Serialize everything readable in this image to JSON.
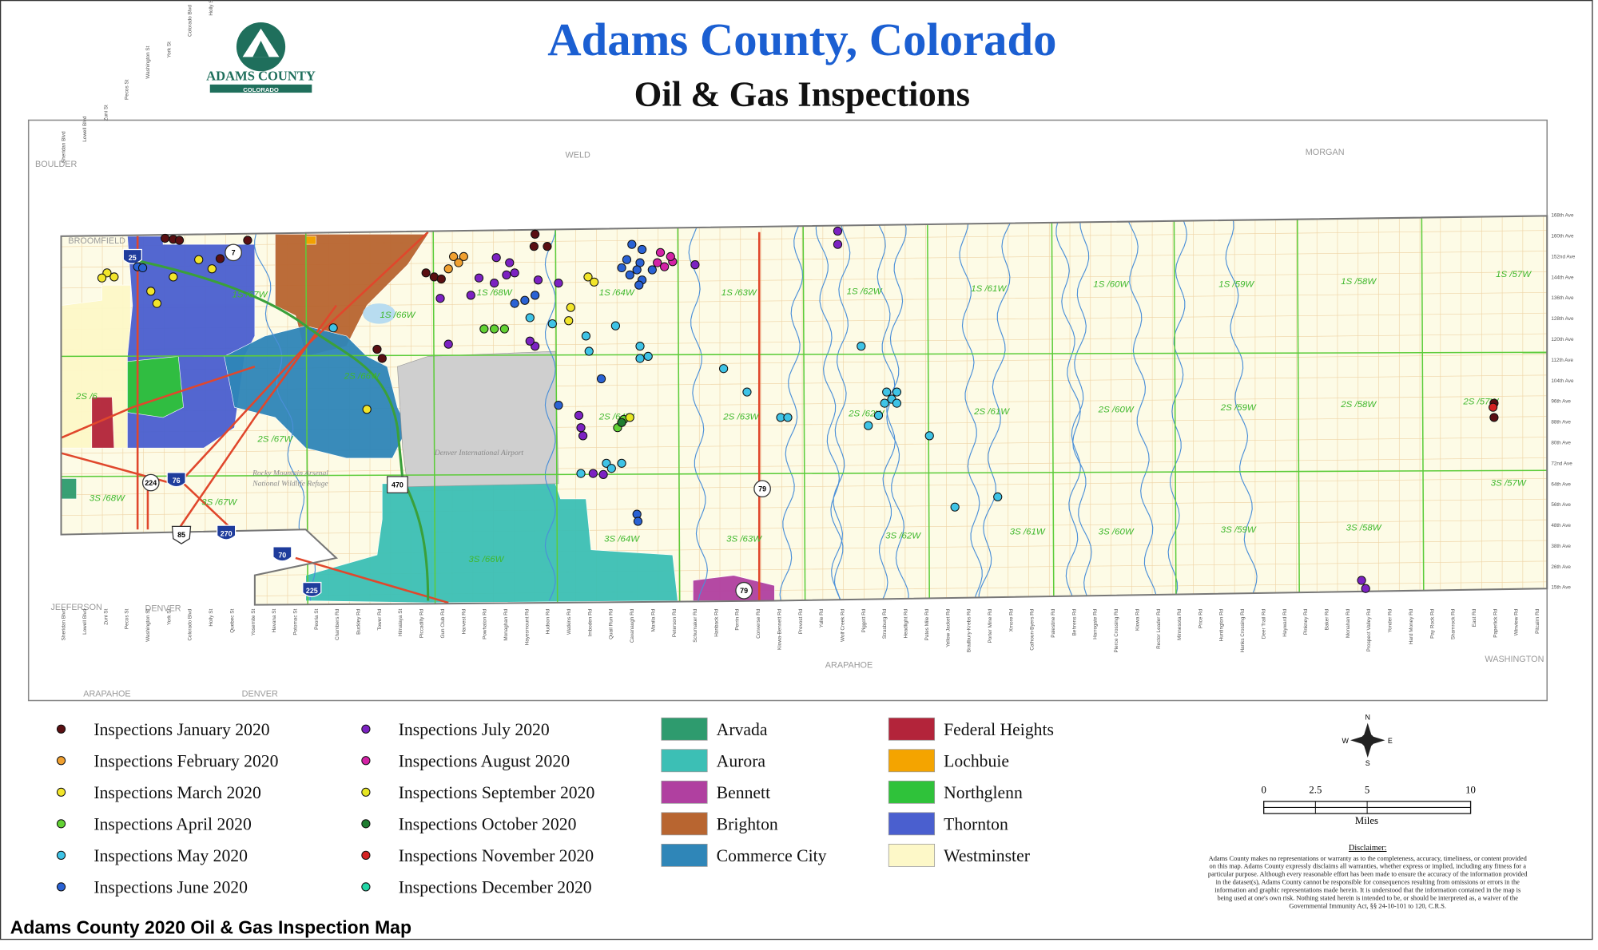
{
  "header": {
    "title": "Adams County, Colorado",
    "subtitle": "Oil & Gas Inspections",
    "logo_text": "ADAMS COUNTY",
    "logo_subtext": "COLORADO"
  },
  "map": {
    "neighbor_labels": [
      "BOULDER",
      "WELD",
      "MORGAN",
      "BROOMFIELD",
      "JEFFERSON",
      "DENVER",
      "ARAPAHOE",
      "WASHINGTON",
      "ARAPAHOE",
      "DENVER"
    ],
    "places": [
      "Denver International Airport",
      "Rocky Mountain Arsenal",
      "National Wildlife Refuge"
    ],
    "townships": [
      "1S /67W",
      "1S /66W",
      "1S /68W",
      "1S /64W",
      "1S /63W",
      "1S /62W",
      "1S /61W",
      "1S /60W",
      "1S /59W",
      "1S /58W",
      "1S /57W",
      "2S /6",
      "2S /66W",
      "2S /67W",
      "2S /64W",
      "2S /63W",
      "2S /62W",
      "2S /61W",
      "2S /60W",
      "2S /59W",
      "2S /58W",
      "2S /57W",
      "3S /68W",
      "3S /67W",
      "3S /66W",
      "3S /64W",
      "3S /63W",
      "3S /62W",
      "3S /61W",
      "3S /60W",
      "3S /59W",
      "3S /58W",
      "3S /57W"
    ],
    "avenues": [
      "168th Ave",
      "160th Ave",
      "152nd Ave",
      "144th Ave",
      "136th Ave",
      "128th Ave",
      "120th Ave",
      "112th Ave",
      "104th Ave",
      "96th Ave",
      "88th Ave",
      "80th Ave",
      "72nd Ave",
      "64th Ave",
      "56th Ave",
      "48th Ave",
      "38th Ave",
      "26th Ave",
      "15th Ave"
    ],
    "roads": [
      "Sheridan Blvd",
      "Lowell Blvd",
      "Zuni St",
      "Pecos St",
      "Washington St",
      "York St",
      "Colorado Blvd",
      "Holly St",
      "Quebec St",
      "Yosemite St",
      "Havana St",
      "Potomac St",
      "Peoria St",
      "Chambers Rd",
      "Buckley Rd",
      "Tower Rd",
      "Himalaya St",
      "Piccadilly Rd",
      "Gun Club Rd",
      "Harvest Rd",
      "Powhaton Rd",
      "Monaghan Rd",
      "Hayesmount Rd",
      "Hudson Rd",
      "Watkins Rd",
      "Imboden Rd",
      "Quail Run Rd",
      "Cavanaugh Rd",
      "Manila Rd",
      "Peterson Rd",
      "Schumaker Rd",
      "Hanback Rd",
      "Perrin Rd",
      "Converse Rd",
      "Kiowa-Bennett Rd",
      "Prevost Rd",
      "Yulle Rd",
      "Wolf Creek Rd",
      "Piggott Rd",
      "Strasburg Rd",
      "Headlight Rd",
      "Pates Mile Rd",
      "Yellow Jacket Rd",
      "Bradbury-Krebs Rd",
      "Porter Mine Rd",
      "Xmore Rd",
      "Calhoun-Byers Rd",
      "Palestine Rd",
      "Behrens Rd",
      "Harrogate Rd",
      "Pierce Crossing Rd",
      "Kiowa Rd",
      "Rector Leader Rd",
      "Minnesota Rd",
      "Price Rd",
      "Huntington Rd",
      "Hanks Crossing Rd",
      "Deer Trail Rd",
      "Hayward Rd",
      "Pinkney Rd",
      "Baker Rd",
      "Monahan Rd",
      "Prospect Valley Rd",
      "Yonder Rd",
      "Hard Money Rd",
      "Pay Rock Rd",
      "Shamrock Rd",
      "East Rd",
      "Paperlick Rd",
      "Winview Rd",
      "Pitcairn Rd"
    ],
    "highways": [
      "25",
      "7",
      "76",
      "224",
      "85",
      "270",
      "470",
      "79",
      "79",
      "70",
      "225"
    ]
  },
  "legend": {
    "inspections": [
      {
        "label": "Inspections January 2020",
        "color": "#5a0f12"
      },
      {
        "label": "Inspections February 2020",
        "color": "#f0a030"
      },
      {
        "label": "Inspections March 2020",
        "color": "#f2e52a"
      },
      {
        "label": "Inspections April 2020",
        "color": "#62d234"
      },
      {
        "label": "Inspections May 2020",
        "color": "#3ec3e6"
      },
      {
        "label": "Inspections June 2020",
        "color": "#2a62d4"
      },
      {
        "label": "Inspections July 2020",
        "color": "#7c22c2"
      },
      {
        "label": "Inspections August 2020",
        "color": "#d422a6"
      },
      {
        "label": "Inspections September 2020",
        "color": "#e6e622"
      },
      {
        "label": "Inspections October 2020",
        "color": "#1f7d31"
      },
      {
        "label": "Inspections November 2020",
        "color": "#d42222"
      },
      {
        "label": "Inspections December 2020",
        "color": "#22d6a6"
      }
    ],
    "municipalities": [
      {
        "label": "Arvada",
        "color": "#2e9b6e"
      },
      {
        "label": "Aurora",
        "color": "#3cbfb5"
      },
      {
        "label": "Bennett",
        "color": "#b040a0"
      },
      {
        "label": "Brighton",
        "color": "#b86530"
      },
      {
        "label": "Commerce City",
        "color": "#2f86b8"
      },
      {
        "label": "Federal Heights",
        "color": "#b3243a"
      },
      {
        "label": "Lochbuie",
        "color": "#f4a400"
      },
      {
        "label": "Northglenn",
        "color": "#2fc23a"
      },
      {
        "label": "Thornton",
        "color": "#4a5fcf"
      },
      {
        "label": "Westminster",
        "color": "#fdf8c8"
      }
    ]
  },
  "scale": {
    "ticks": [
      0,
      2.5,
      5,
      10
    ],
    "unit": "Miles"
  },
  "compass": {
    "n": "N",
    "e": "E",
    "s": "S",
    "w": "W"
  },
  "disclaimer": {
    "title": "Disclaimer:",
    "lines": [
      "Adams County makes no representations or warranty as to the completeness, accuracy, timeliness, or content provided",
      "on this map. Adams County expressly disclaims all warranties, whether express or implied, including any fitness for a",
      "particular purpose. Although every reasonable effort has been made to ensure the accuracy of the information provided",
      "in the dataset(s), Adams County cannot be responsible for consequences resulting from omissions or errors in the",
      "information and graphic representations made herein.  It is understood that the information contained in the map is",
      "being used at one's own risk.  Nothing stated herein is intended to be, or should be interpreted as, a waiver of the",
      "Governmental Immunity Act, §§ 24-10-101 to 120, C.R.S."
    ]
  },
  "caption": "Adams County 2020 Oil & Gas Inspection Map"
}
